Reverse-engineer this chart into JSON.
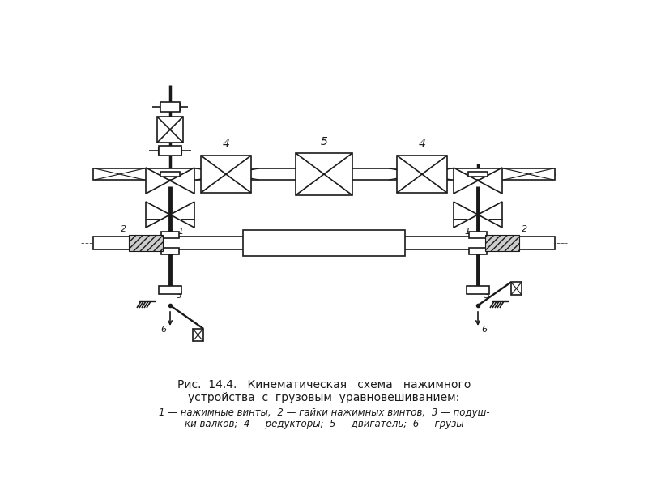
{
  "title_line1": "Рис.  14.4.   Кинематическая   схема   нажимного",
  "title_line2": "устройства  с  грузовым  уравновешиванием:",
  "legend_line1": "1 — нажимные винты;  2 — гайки нажимных винтов;  3 — подуш-",
  "legend_line2": "ки валков;  4 — редукторы;  5 — двигатель;  6 — грузы",
  "bg_color": "#ffffff",
  "line_color": "#1a1a1a",
  "lw": 1.2
}
